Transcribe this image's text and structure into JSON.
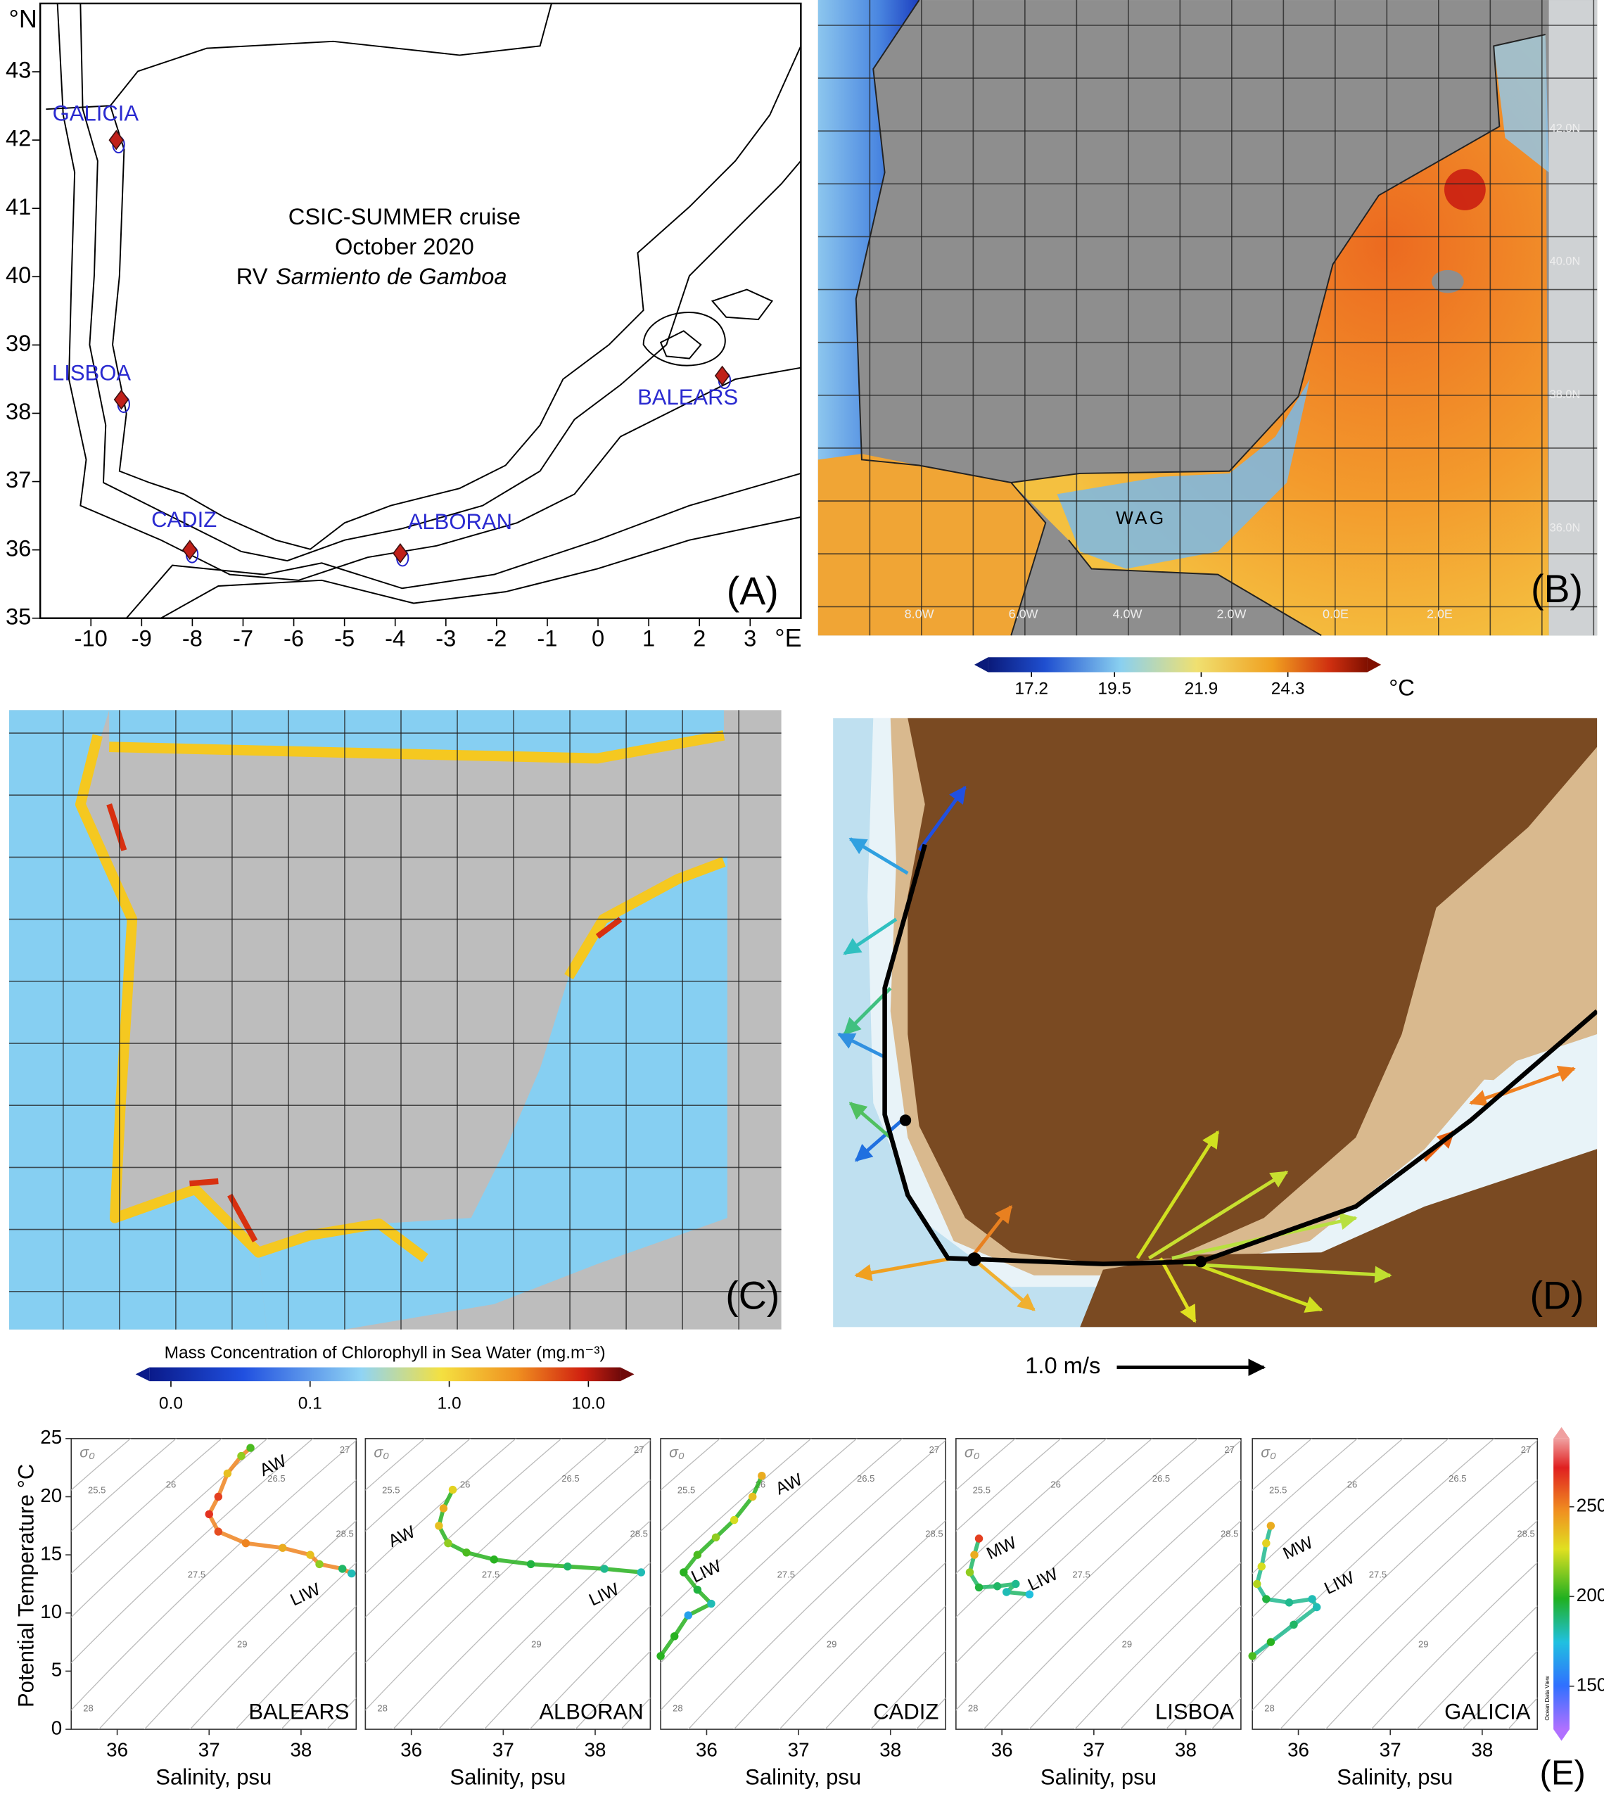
{
  "panel_a": {
    "label": "(A)",
    "title_lines": [
      "CSIC-SUMMER cruise",
      "October 2020"
    ],
    "vessel_prefix": "RV",
    "vessel_name": "Sarmiento de Gamboa",
    "lat_unit": "°N",
    "lon_unit": "°E",
    "xlim": [
      -11,
      4
    ],
    "ylim": [
      35,
      44
    ],
    "xticks": [
      -10,
      -9,
      -8,
      -7,
      -6,
      -5,
      -4,
      -3,
      -2,
      -1,
      0,
      1,
      2,
      3
    ],
    "yticks": [
      35,
      36,
      37,
      38,
      39,
      40,
      41,
      42,
      43
    ],
    "stations": [
      {
        "name": "GALICIA",
        "lon": -9.5,
        "lat": 42.0
      },
      {
        "name": "LISBOA",
        "lon": -9.4,
        "lat": 38.2
      },
      {
        "name": "CADIZ",
        "lon": -8.05,
        "lat": 36.0
      },
      {
        "name": "ALBORAN",
        "lon": -3.9,
        "lat": 35.95
      },
      {
        "name": "BALEARS",
        "lon": 2.45,
        "lat": 38.55
      }
    ]
  },
  "panel_b": {
    "label": "(B)",
    "annotation": "WAG",
    "lat_labels": [
      "42.0N",
      "40.0N",
      "38.0N",
      "36.0N"
    ],
    "lon_labels": [
      "8.0W",
      "6.0W",
      "4.0W",
      "2.0W",
      "0.0E",
      "2.0E"
    ],
    "colorbar": {
      "unit": "°C",
      "clim": [
        16,
        26.5
      ],
      "ticks": [
        17.2,
        19.5,
        21.9,
        24.3
      ]
    }
  },
  "panel_c": {
    "label": "(C)",
    "colorbar": {
      "title": "Mass Concentration of Chlorophyll in Sea Water (mg.m⁻³)",
      "scale": "log",
      "clim": [
        0.007,
        17
      ],
      "ticks": [
        {
          "value": 0.01,
          "label": "0.0"
        },
        {
          "value": 0.1,
          "label": "0.1"
        },
        {
          "value": 1,
          "label": "1.0"
        },
        {
          "value": 10,
          "label": "10.0"
        }
      ]
    }
  },
  "panel_d": {
    "label": "(D)",
    "scale_label": "1.0 m/s"
  },
  "panel_e": {
    "label": "(E)",
    "ylabel": "Potential Temperature °C",
    "xlabel": "Salinity, psu",
    "density_symbol": "σ₀",
    "isopycnals": [
      "25.5",
      "26",
      "26.5",
      "27",
      "27.5",
      "28.5",
      "29",
      "28"
    ],
    "xlim": [
      35.5,
      38.6
    ],
    "xticks": [
      36,
      37,
      38
    ],
    "ylim": [
      0,
      25
    ],
    "yticks": [
      0,
      5,
      10,
      15,
      20,
      25
    ],
    "colorbar": {
      "clim": [
        126,
        288
      ],
      "ticks": [
        150,
        200,
        250
      ],
      "credit": "Ocean Data View"
    },
    "plots": [
      {
        "station": "BALEARS",
        "water_masses": [
          "AW",
          "LIW"
        ],
        "salinity": [
          37.45,
          37.35,
          37.2,
          37.1,
          37.0,
          37.1,
          37.4,
          37.8,
          38.1,
          38.2,
          38.45,
          38.55
        ],
        "temperature": [
          24.2,
          23.5,
          22,
          20,
          18.5,
          17,
          16,
          15.6,
          15,
          14.2,
          13.8,
          13.4
        ],
        "color_value": [
          205,
          215,
          235,
          265,
          268,
          262,
          250,
          240,
          235,
          215,
          190,
          180
        ]
      },
      {
        "station": "ALBORAN",
        "water_masses": [
          "AW",
          "LIW"
        ],
        "salinity": [
          36.45,
          36.35,
          36.3,
          36.4,
          36.6,
          36.9,
          37.3,
          37.7,
          38.1,
          38.5
        ],
        "temperature": [
          20.6,
          19,
          17.5,
          16,
          15.2,
          14.6,
          14.2,
          14,
          13.8,
          13.5
        ],
        "color_value": [
          230,
          240,
          235,
          215,
          205,
          200,
          195,
          190,
          185,
          180
        ]
      },
      {
        "station": "CADIZ",
        "water_masses": [
          "AW",
          "LIW"
        ],
        "salinity": [
          36.6,
          36.5,
          36.3,
          36.1,
          35.9,
          35.75,
          35.9,
          36.05,
          35.8,
          35.65,
          35.5
        ],
        "temperature": [
          21.8,
          20,
          18,
          16.5,
          15,
          13.5,
          12,
          10.8,
          9.8,
          8,
          6.3
        ],
        "color_value": [
          240,
          235,
          225,
          215,
          205,
          200,
          195,
          180,
          165,
          200,
          200
        ]
      },
      {
        "station": "LISBOA",
        "water_masses": [
          "MW",
          "LIW"
        ],
        "salinity": [
          35.75,
          35.7,
          35.65,
          35.75,
          35.95,
          36.15,
          36.05,
          36.3
        ],
        "temperature": [
          16.4,
          15,
          13.5,
          12.2,
          12.3,
          12.5,
          11.8,
          11.6
        ],
        "color_value": [
          265,
          240,
          215,
          195,
          190,
          185,
          180,
          175
        ]
      },
      {
        "station": "GALICIA",
        "water_masses": [
          "MW",
          "LIW"
        ],
        "salinity": [
          35.7,
          35.65,
          35.6,
          35.55,
          35.65,
          35.9,
          36.15,
          36.2,
          35.95,
          35.7,
          35.5
        ],
        "temperature": [
          17.5,
          16,
          14,
          12.5,
          11.2,
          10.9,
          11.2,
          10.5,
          9,
          7.5,
          6.3
        ],
        "color_value": [
          240,
          230,
          225,
          220,
          195,
          185,
          180,
          180,
          190,
          200,
          205
        ]
      }
    ]
  }
}
